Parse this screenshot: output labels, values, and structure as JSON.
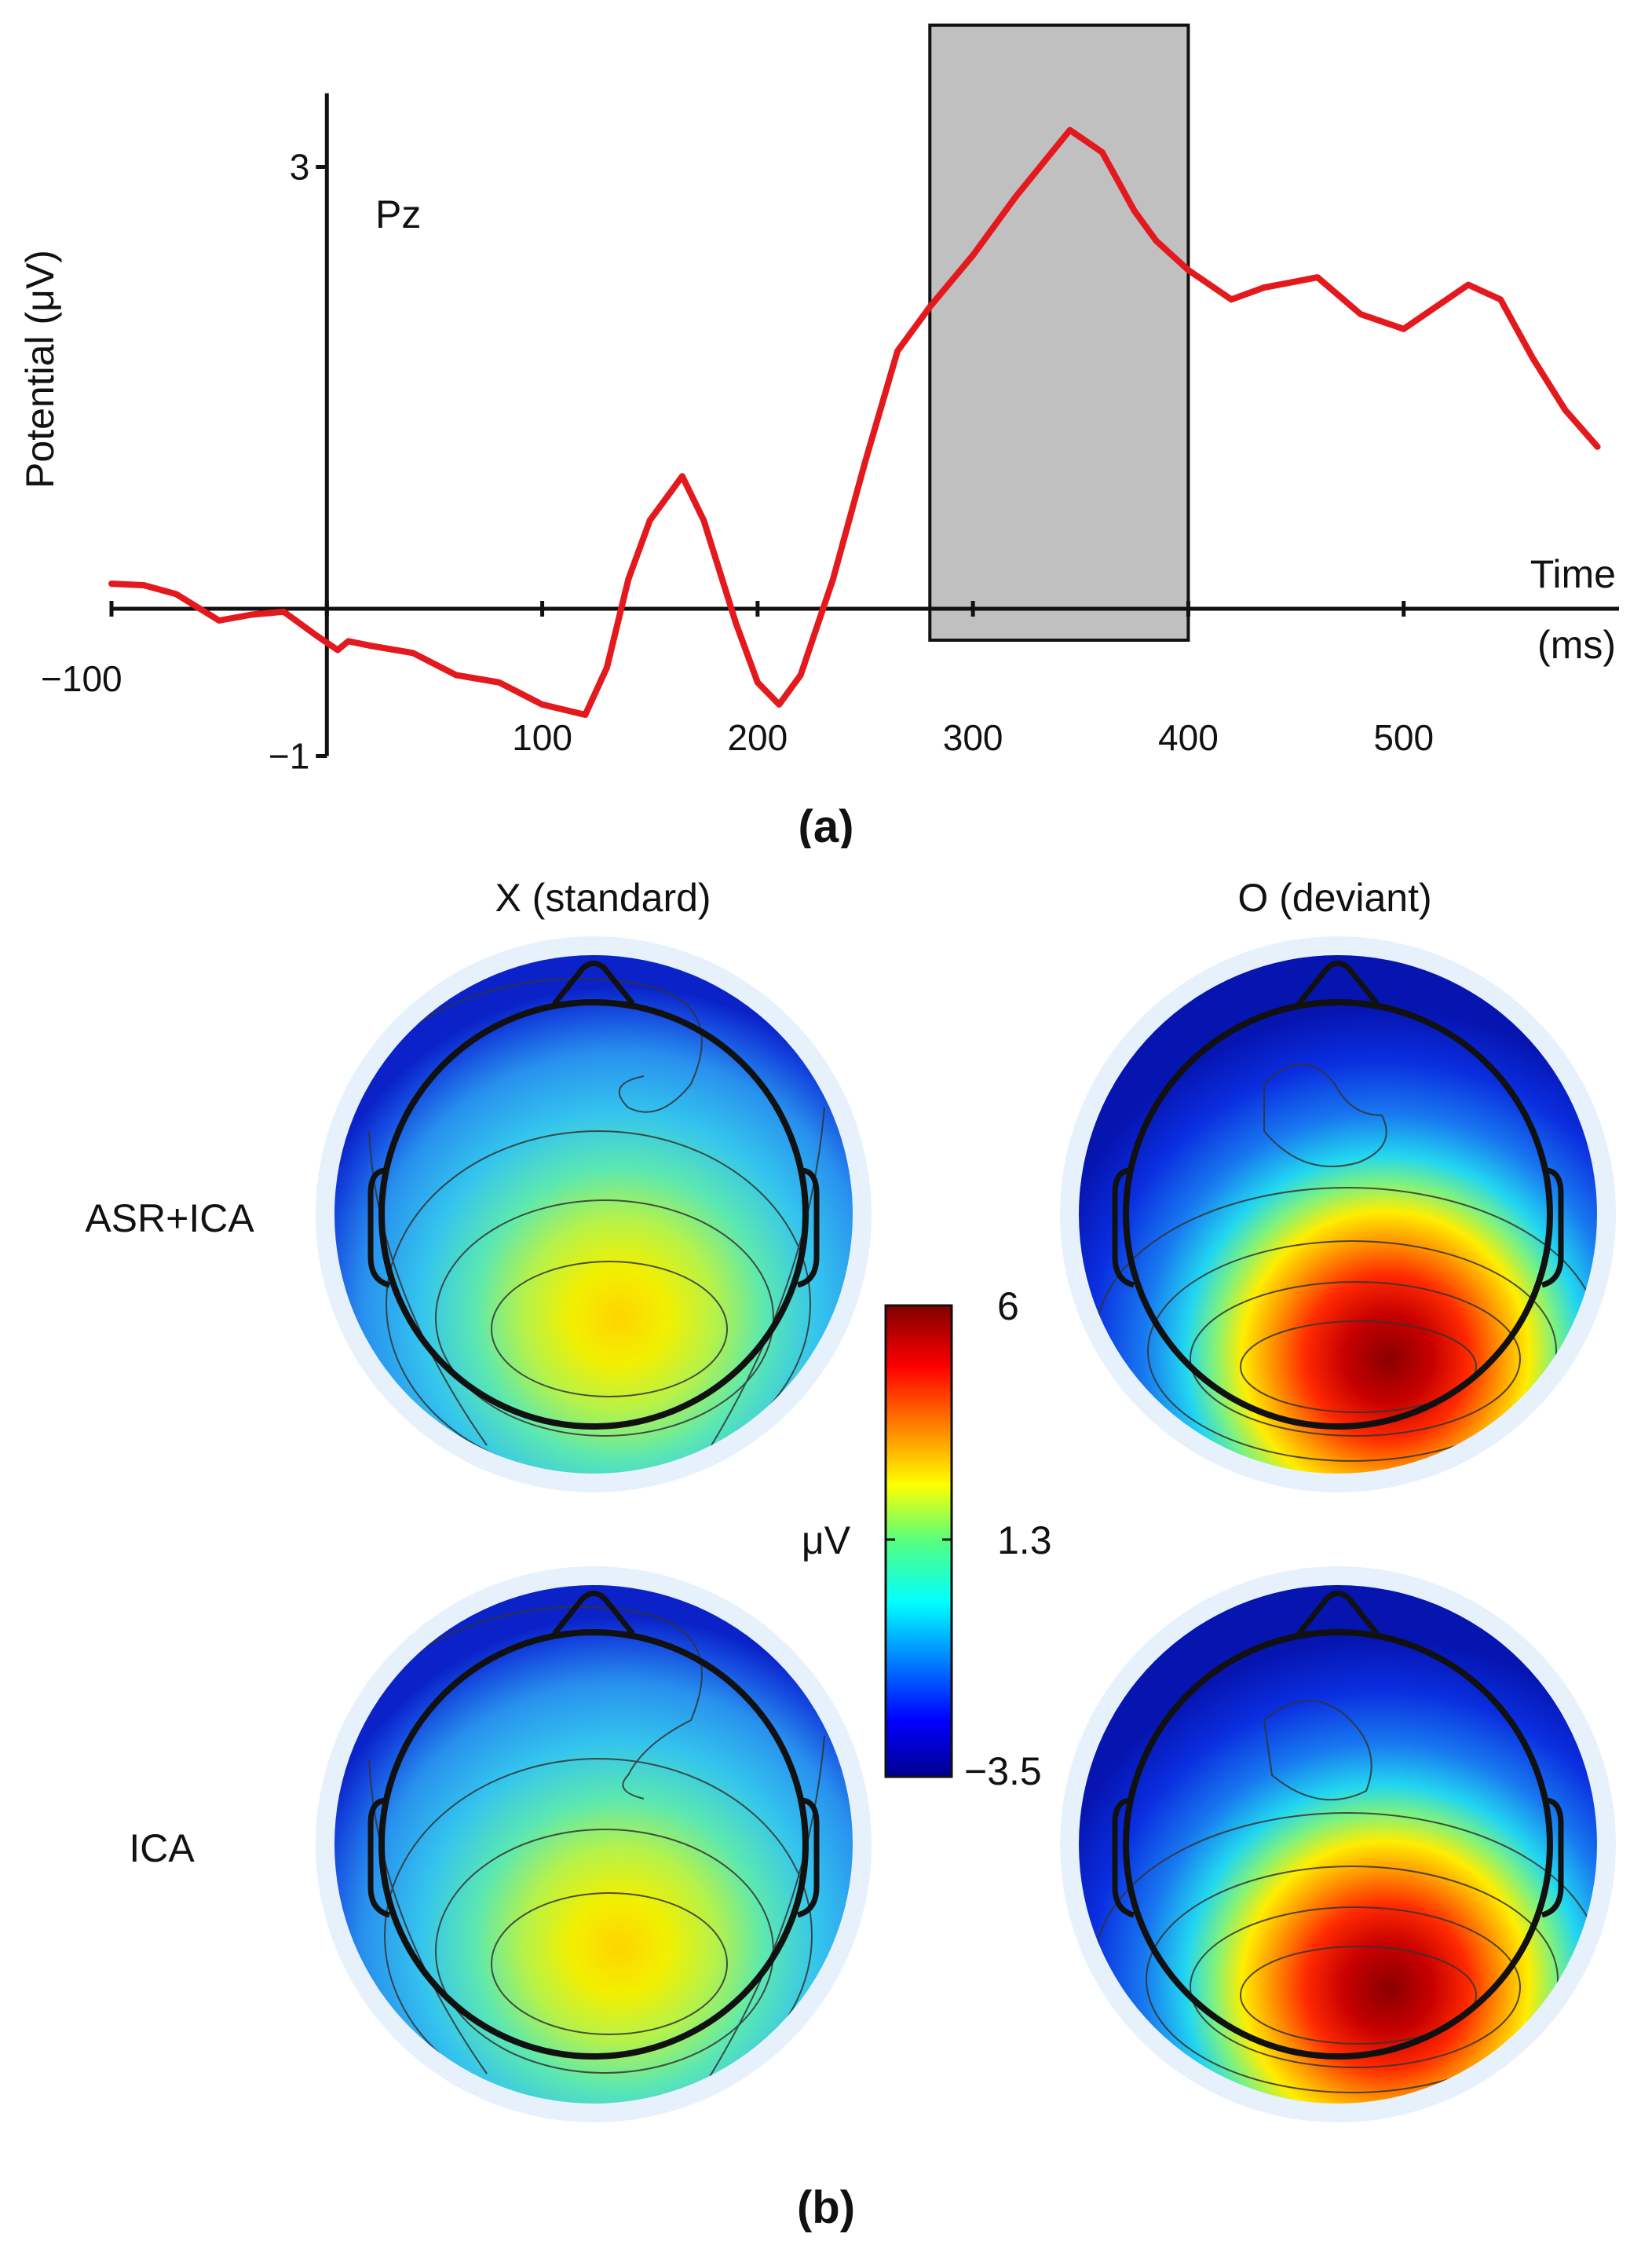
{
  "chart_data": [
    {
      "type": "line",
      "panel_label": "(a)",
      "channel": "Pz",
      "ylabel": "Potential (μV)",
      "xlabel_line1": "Time",
      "xlabel_line2": "(ms)",
      "xlim": [
        -100,
        600
      ],
      "ylim": [
        -1,
        3.5
      ],
      "x_ticks": [
        -100,
        100,
        200,
        300,
        400,
        500
      ],
      "x_tick_labels": [
        "−100",
        "100",
        "200",
        "300",
        "400",
        "500"
      ],
      "y_ticks": [
        3,
        -1
      ],
      "y_tick_labels": [
        "3",
        "−1"
      ],
      "highlight_window_ms": [
        280,
        400
      ],
      "highlight_color": "#c0c0c0",
      "series": [
        {
          "name": "Pz",
          "color": "#e3191e",
          "x": [
            -100,
            -85,
            -70,
            -50,
            -35,
            -20,
            -5,
            5,
            10,
            20,
            40,
            60,
            80,
            100,
            120,
            130,
            140,
            150,
            165,
            175,
            190,
            200,
            210,
            220,
            235,
            250,
            265,
            280,
            300,
            320,
            345,
            360,
            375,
            385,
            400,
            420,
            435,
            460,
            480,
            500,
            515,
            530,
            545,
            560,
            575,
            590
          ],
          "y": [
            0.17,
            0.16,
            0.1,
            -0.08,
            -0.04,
            -0.02,
            -0.18,
            -0.28,
            -0.22,
            -0.25,
            -0.3,
            -0.45,
            -0.5,
            -0.65,
            -0.72,
            -0.4,
            0.2,
            0.6,
            0.9,
            0.6,
            -0.1,
            -0.5,
            -0.65,
            -0.45,
            0.2,
            1.0,
            1.75,
            2.05,
            2.4,
            2.8,
            3.25,
            3.1,
            2.7,
            2.5,
            2.3,
            2.1,
            2.18,
            2.25,
            2.0,
            1.9,
            2.05,
            2.2,
            2.1,
            1.7,
            1.35,
            1.1
          ]
        }
      ]
    },
    {
      "type": "heatmap",
      "panel_label": "(b)",
      "columns": [
        "X (standard)",
        "O (deviant)"
      ],
      "rows": [
        "ASR+ICA",
        "ICA"
      ],
      "colorbar_label": "μV",
      "colorbar_ticks": [
        6,
        1.3,
        -3.5
      ],
      "colorbar_tick_labels": [
        "6",
        "1.3",
        "−3.5"
      ],
      "colormap": "jet",
      "maps": [
        {
          "row": "ASR+ICA",
          "column": "X (standard)",
          "peak_uV": 2.8,
          "peak_region": "parietal"
        },
        {
          "row": "ASR+ICA",
          "column": "O (deviant)",
          "peak_uV": 6.0,
          "peak_region": "parietal"
        },
        {
          "row": "ICA",
          "column": "X (standard)",
          "peak_uV": 3.0,
          "peak_region": "parietal"
        },
        {
          "row": "ICA",
          "column": "O (deviant)",
          "peak_uV": 6.0,
          "peak_region": "parietal"
        }
      ]
    }
  ]
}
